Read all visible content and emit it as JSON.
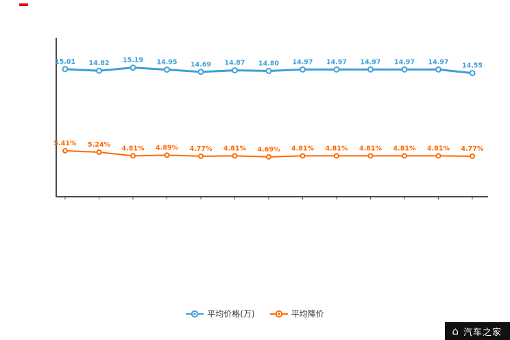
{
  "decorations": {
    "red_mark_color": "#e60012"
  },
  "chart_data": {
    "type": "line",
    "title": "",
    "x_count": 13,
    "categories": [],
    "grid": false,
    "legend_position": "bottom",
    "ylim": [
      0,
      18.5
    ],
    "axis_color": "#4a4a4a",
    "series": [
      {
        "name": "平均价格(万)",
        "color": "#3f9fd8",
        "values": [
          15.01,
          14.82,
          15.19,
          14.95,
          14.69,
          14.87,
          14.8,
          14.97,
          14.97,
          14.97,
          14.97,
          14.97,
          14.55
        ],
        "labels": [
          "15.01",
          "14.82",
          "15.19",
          "14.95",
          "14.69",
          "14.87",
          "14.80",
          "14.97",
          "14.97",
          "14.97",
          "14.97",
          "14.97",
          "14.55"
        ]
      },
      {
        "name": "平均降价",
        "color": "#ff6a00",
        "values": [
          5.41,
          5.24,
          4.81,
          4.89,
          4.77,
          4.81,
          4.69,
          4.81,
          4.81,
          4.81,
          4.81,
          4.81,
          4.77
        ],
        "labels": [
          "5.41%",
          "5.24%",
          "4.81%",
          "4.89%",
          "4.77%",
          "4.81%",
          "4.69%",
          "4.81%",
          "4.81%",
          "4.81%",
          "4.81%",
          "4.81%",
          "4.77%"
        ]
      }
    ]
  },
  "watermark": {
    "text": "汽车之家",
    "bg": "#111111",
    "text_color": "#ffffff"
  }
}
